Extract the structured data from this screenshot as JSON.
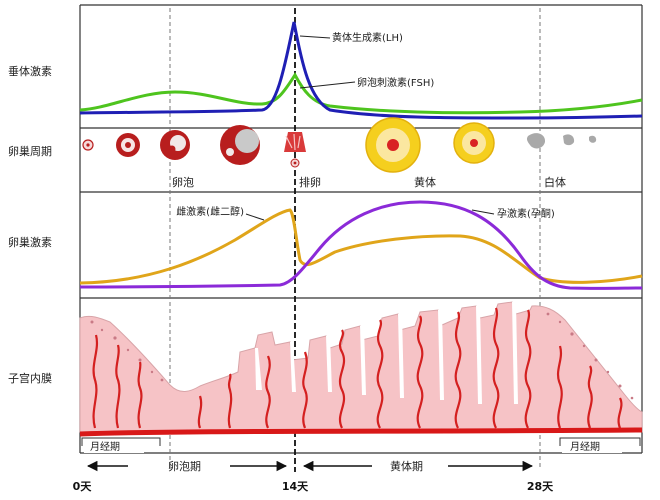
{
  "rows": {
    "pituitary": "垂体激素",
    "ovary_cycle": "卵巢周期",
    "ovary_hormone": "卵巢激素",
    "endometrium": "子宫内膜"
  },
  "curves": {
    "lh": "黄体生成素(LH)",
    "fsh": "卵泡刺激素(FSH)",
    "estrogen": "雌激素(雌二醇)",
    "progesterone": "孕激素(孕酮)"
  },
  "stages": {
    "follicle": "卵泡",
    "ovulation": "排卵",
    "corpus_luteum": "黄体",
    "corpus_albicans": "白体"
  },
  "phases": {
    "menstrual_start": "月经期",
    "follicular": "卵泡期",
    "luteal": "黄体期",
    "menstrual_end": "月经期"
  },
  "days": {
    "day0": "0天",
    "day14": "14天",
    "day28": "28天"
  },
  "colors": {
    "lh": "#1f1fb4",
    "fsh": "#4ec41e",
    "estrogen": "#e0a51a",
    "progesterone": "#8b2ad8",
    "endometrium_fill": "#f6c3c6",
    "gland": "#d42020",
    "vessel": "#d81818",
    "luteum_yellow": "#f5cf1e",
    "follicle_red": "#b81e1e"
  }
}
